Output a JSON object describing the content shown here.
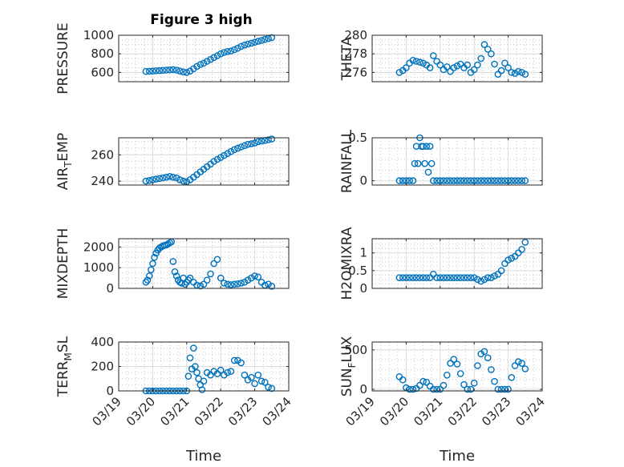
{
  "figure": {
    "title": "Figure 3 high",
    "marker_color": "#0072bd"
  },
  "chart_data": [
    {
      "type": "scatter",
      "title": "Figure 3 high",
      "ylabel": "PRESSURE",
      "ylabel_parts": [
        "PRESSURE"
      ],
      "xlim": [
        0,
        5
      ],
      "ylim": [
        500,
        1000
      ],
      "yticks": [
        600,
        800,
        1000
      ],
      "xticklabels": [
        "03/19",
        "03/20",
        "03/21",
        "03/22",
        "03/23",
        "03/24"
      ],
      "xlabel": "",
      "series": [
        {
          "x": [
            0.8,
            0.9,
            1.0,
            1.1,
            1.2,
            1.3,
            1.4,
            1.5,
            1.6,
            1.7,
            1.8,
            1.9,
            2.0,
            2.1,
            2.2,
            2.3,
            2.4,
            2.5,
            2.6,
            2.7,
            2.8,
            2.9,
            3.0,
            3.1,
            3.2,
            3.3,
            3.4,
            3.5,
            3.6,
            3.7,
            3.8,
            3.9,
            4.0,
            4.1,
            4.2,
            4.3,
            4.4,
            4.5
          ],
          "y": [
            610,
            612,
            615,
            618,
            620,
            622,
            625,
            628,
            630,
            625,
            615,
            605,
            600,
            615,
            640,
            665,
            685,
            700,
            720,
            740,
            760,
            780,
            800,
            815,
            825,
            830,
            845,
            860,
            880,
            895,
            905,
            915,
            925,
            935,
            945,
            955,
            965,
            975
          ]
        }
      ]
    },
    {
      "type": "scatter",
      "ylabel": "THETA",
      "ylabel_parts": [
        "THETA"
      ],
      "xlim": [
        0,
        5
      ],
      "ylim": [
        275,
        280
      ],
      "yticks": [
        276,
        278,
        280
      ],
      "xticklabels": [
        "03/19",
        "03/20",
        "03/21",
        "03/22",
        "03/23",
        "03/24"
      ],
      "xlabel": "",
      "series": [
        {
          "x": [
            0.8,
            0.9,
            1.0,
            1.1,
            1.2,
            1.3,
            1.4,
            1.5,
            1.6,
            1.7,
            1.8,
            1.9,
            2.0,
            2.1,
            2.2,
            2.3,
            2.4,
            2.5,
            2.6,
            2.7,
            2.8,
            2.9,
            3.0,
            3.1,
            3.2,
            3.3,
            3.4,
            3.5,
            3.6,
            3.7,
            3.8,
            3.9,
            4.0,
            4.1,
            4.2,
            4.3,
            4.4,
            4.5
          ],
          "y": [
            276,
            276.2,
            276.5,
            277,
            277.3,
            277.2,
            277.1,
            277,
            276.8,
            276.5,
            277.8,
            277.2,
            276.8,
            276.3,
            276.6,
            276.1,
            276.5,
            276.7,
            276.9,
            276.5,
            276.8,
            276,
            276.3,
            276.8,
            277.5,
            279,
            278.5,
            278,
            276.9,
            275.8,
            276.2,
            277,
            276.5,
            276,
            275.9,
            276.1,
            276,
            275.8
          ]
        }
      ]
    },
    {
      "type": "scatter",
      "ylabel": "AIR_TEMP",
      "ylabel_parts": [
        "AIR",
        "T",
        "EMP"
      ],
      "xlim": [
        0,
        5
      ],
      "ylim": [
        237,
        273
      ],
      "yticks": [
        240,
        260
      ],
      "xticklabels": [
        "03/19",
        "03/20",
        "03/21",
        "03/22",
        "03/23",
        "03/24"
      ],
      "xlabel": "",
      "series": [
        {
          "x": [
            0.8,
            0.9,
            1.0,
            1.1,
            1.2,
            1.3,
            1.4,
            1.5,
            1.6,
            1.7,
            1.8,
            1.9,
            2.0,
            2.1,
            2.2,
            2.3,
            2.4,
            2.5,
            2.6,
            2.7,
            2.8,
            2.9,
            3.0,
            3.1,
            3.2,
            3.3,
            3.4,
            3.5,
            3.6,
            3.7,
            3.8,
            3.9,
            4.0,
            4.1,
            4.2,
            4.3,
            4.4,
            4.5
          ],
          "y": [
            240,
            240.5,
            241,
            241.5,
            242,
            242.5,
            243,
            243.5,
            243,
            242.5,
            241,
            240,
            239.5,
            241,
            243,
            245,
            247,
            249,
            251,
            253,
            255,
            256.5,
            258,
            259.5,
            261,
            262.5,
            264,
            265,
            266,
            267,
            268,
            268.5,
            269,
            270,
            270.5,
            271,
            271.5,
            272
          ]
        }
      ]
    },
    {
      "type": "scatter",
      "ylabel": "RAINFALL",
      "ylabel_parts": [
        "RAINFALL"
      ],
      "xlim": [
        0,
        5
      ],
      "ylim": [
        -0.05,
        0.5
      ],
      "yticks": [
        0,
        0.5
      ],
      "xticklabels": [
        "03/19",
        "03/20",
        "03/21",
        "03/22",
        "03/23",
        "03/24"
      ],
      "xlabel": "",
      "series": [
        {
          "x": [
            0.8,
            0.9,
            1.0,
            1.1,
            1.2,
            1.25,
            1.3,
            1.35,
            1.4,
            1.45,
            1.5,
            1.55,
            1.6,
            1.65,
            1.7,
            1.75,
            1.8,
            1.9,
            2.0,
            2.1,
            2.2,
            2.3,
            2.4,
            2.5,
            2.6,
            2.7,
            2.8,
            2.9,
            3.0,
            3.1,
            3.2,
            3.3,
            3.4,
            3.5,
            3.6,
            3.7,
            3.8,
            3.9,
            4.0,
            4.1,
            4.2,
            4.3,
            4.4,
            4.5
          ],
          "y": [
            0,
            0,
            0,
            0,
            0,
            0.2,
            0.4,
            0.2,
            0.5,
            0.4,
            0.4,
            0.2,
            0.4,
            0.1,
            0.4,
            0.2,
            0,
            0,
            0,
            0,
            0,
            0,
            0,
            0,
            0,
            0,
            0,
            0,
            0,
            0,
            0,
            0,
            0,
            0,
            0,
            0,
            0,
            0,
            0,
            0,
            0,
            0,
            0,
            0
          ]
        }
      ]
    },
    {
      "type": "scatter",
      "ylabel": "MIXDEPTH",
      "ylabel_parts": [
        "MIXDEPTH"
      ],
      "xlim": [
        0,
        5
      ],
      "ylim": [
        0,
        2400
      ],
      "yticks": [
        0,
        1000,
        2000
      ],
      "xticklabels": [
        "03/19",
        "03/20",
        "03/21",
        "03/22",
        "03/23",
        "03/24"
      ],
      "xlabel": "",
      "series": [
        {
          "x": [
            0.8,
            0.85,
            0.9,
            0.95,
            1.0,
            1.05,
            1.1,
            1.15,
            1.2,
            1.25,
            1.3,
            1.35,
            1.4,
            1.45,
            1.5,
            1.55,
            1.6,
            1.65,
            1.7,
            1.75,
            1.8,
            1.85,
            1.9,
            1.95,
            2.0,
            2.05,
            2.1,
            2.2,
            2.3,
            2.4,
            2.5,
            2.6,
            2.7,
            2.8,
            2.9,
            3.0,
            3.1,
            3.2,
            3.3,
            3.4,
            3.5,
            3.6,
            3.7,
            3.8,
            3.9,
            4.0,
            4.1,
            4.2,
            4.3,
            4.4,
            4.5
          ],
          "y": [
            300,
            400,
            600,
            900,
            1200,
            1500,
            1700,
            1850,
            1950,
            2000,
            2050,
            2080,
            2100,
            2150,
            2200,
            2250,
            1300,
            800,
            600,
            400,
            300,
            250,
            500,
            200,
            300,
            400,
            500,
            300,
            150,
            120,
            200,
            400,
            700,
            1200,
            1400,
            500,
            250,
            200,
            180,
            200,
            220,
            250,
            300,
            400,
            500,
            600,
            550,
            300,
            150,
            200,
            100
          ]
        }
      ]
    },
    {
      "type": "scatter",
      "ylabel": "H2OMIXRA",
      "ylabel_parts": [
        "H2OMIXRA"
      ],
      "xlim": [
        0,
        5
      ],
      "ylim": [
        0,
        1.4
      ],
      "yticks": [
        0,
        0.5,
        1
      ],
      "xticklabels": [
        "03/19",
        "03/20",
        "03/21",
        "03/22",
        "03/23",
        "03/24"
      ],
      "xlabel": "",
      "series": [
        {
          "x": [
            0.8,
            0.9,
            1.0,
            1.1,
            1.2,
            1.3,
            1.4,
            1.5,
            1.6,
            1.7,
            1.8,
            1.9,
            2.0,
            2.1,
            2.2,
            2.3,
            2.4,
            2.5,
            2.6,
            2.7,
            2.8,
            2.9,
            3.0,
            3.1,
            3.2,
            3.3,
            3.4,
            3.5,
            3.6,
            3.7,
            3.8,
            3.9,
            4.0,
            4.1,
            4.2,
            4.3,
            4.4,
            4.5
          ],
          "y": [
            0.3,
            0.3,
            0.3,
            0.3,
            0.3,
            0.3,
            0.3,
            0.3,
            0.3,
            0.3,
            0.4,
            0.3,
            0.3,
            0.3,
            0.3,
            0.3,
            0.3,
            0.3,
            0.3,
            0.3,
            0.3,
            0.3,
            0.3,
            0.25,
            0.2,
            0.25,
            0.3,
            0.3,
            0.35,
            0.4,
            0.5,
            0.7,
            0.8,
            0.85,
            0.9,
            1.0,
            1.1,
            1.3
          ]
        }
      ]
    },
    {
      "type": "scatter",
      "ylabel": "TERR_MSL",
      "ylabel_parts": [
        "TERR",
        "M",
        "SL"
      ],
      "xlim": [
        0,
        5
      ],
      "ylim": [
        0,
        400
      ],
      "yticks": [
        0,
        200,
        400
      ],
      "xticklabels": [
        "03/19",
        "03/20",
        "03/21",
        "03/22",
        "03/23",
        "03/24"
      ],
      "xlabel": "Time",
      "series": [
        {
          "x": [
            0.8,
            0.9,
            1.0,
            1.1,
            1.2,
            1.3,
            1.4,
            1.5,
            1.6,
            1.7,
            1.8,
            1.9,
            2.0,
            2.05,
            2.1,
            2.15,
            2.2,
            2.25,
            2.3,
            2.35,
            2.4,
            2.45,
            2.5,
            2.6,
            2.7,
            2.8,
            2.9,
            3.0,
            3.1,
            3.2,
            3.3,
            3.4,
            3.5,
            3.6,
            3.7,
            3.8,
            3.9,
            4.0,
            4.1,
            4.2,
            4.3,
            4.4,
            4.5
          ],
          "y": [
            0,
            0,
            0,
            0,
            0,
            0,
            0,
            0,
            0,
            0,
            0,
            0,
            0,
            120,
            270,
            180,
            350,
            200,
            150,
            100,
            50,
            10,
            80,
            150,
            130,
            160,
            140,
            170,
            130,
            150,
            160,
            250,
            250,
            230,
            130,
            90,
            110,
            60,
            130,
            80,
            70,
            30,
            20
          ]
        }
      ]
    },
    {
      "type": "scatter",
      "ylabel": "SUN_FLUX",
      "ylabel_parts": [
        "SUN",
        "F",
        "LUX"
      ],
      "xlim": [
        0,
        5
      ],
      "ylim": [
        -20,
        600
      ],
      "yticks": [
        0,
        500
      ],
      "xticklabels": [
        "03/19",
        "03/20",
        "03/21",
        "03/22",
        "03/23",
        "03/24"
      ],
      "xlabel": "Time",
      "series": [
        {
          "x": [
            0.8,
            0.9,
            1.0,
            1.1,
            1.2,
            1.3,
            1.4,
            1.5,
            1.6,
            1.7,
            1.8,
            1.9,
            2.0,
            2.1,
            2.2,
            2.3,
            2.4,
            2.5,
            2.6,
            2.7,
            2.8,
            2.9,
            3.0,
            3.1,
            3.2,
            3.3,
            3.4,
            3.5,
            3.6,
            3.7,
            3.8,
            3.9,
            4.0,
            4.1,
            4.2,
            4.3,
            4.4,
            4.5
          ],
          "y": [
            160,
            120,
            20,
            0,
            0,
            10,
            50,
            100,
            90,
            40,
            0,
            0,
            0,
            50,
            180,
            330,
            380,
            320,
            200,
            60,
            0,
            0,
            80,
            300,
            450,
            480,
            400,
            250,
            100,
            0,
            0,
            0,
            0,
            150,
            300,
            350,
            330,
            260
          ]
        }
      ]
    }
  ]
}
